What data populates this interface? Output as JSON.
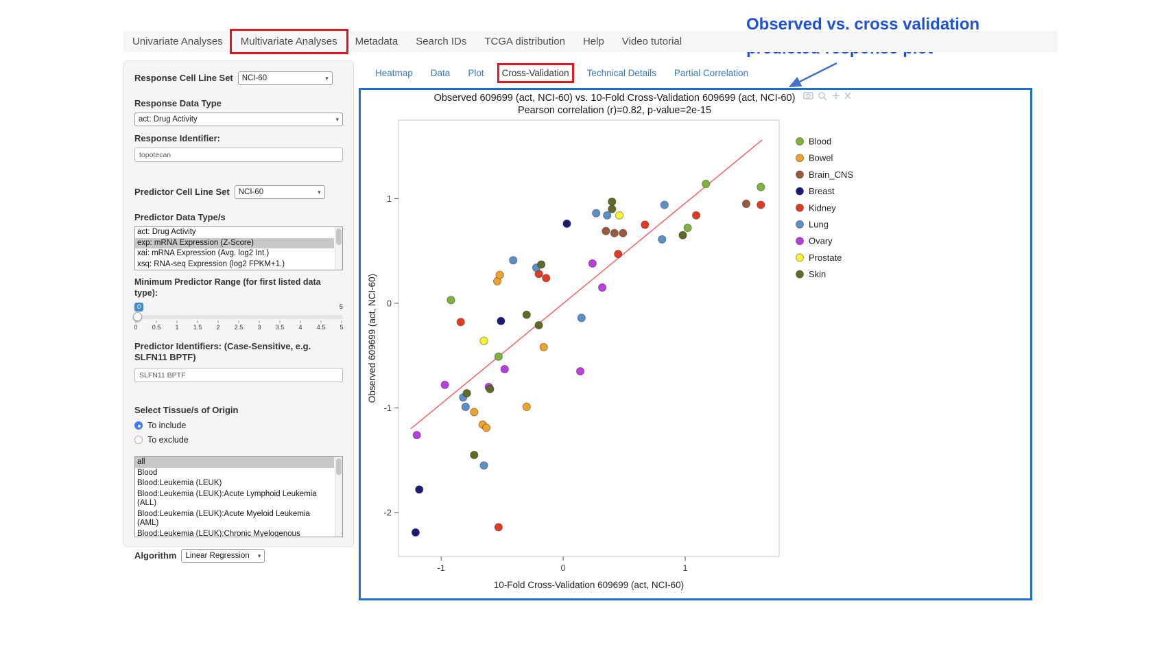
{
  "nav": {
    "tabs": [
      {
        "label": "Univariate Analyses",
        "active": false,
        "highlighted": false
      },
      {
        "label": "Multivariate Analyses",
        "active": true,
        "highlighted": true
      },
      {
        "label": "Metadata",
        "active": false,
        "highlighted": false
      },
      {
        "label": "Search IDs",
        "active": false,
        "highlighted": false
      },
      {
        "label": "TCGA distribution",
        "active": false,
        "highlighted": false
      },
      {
        "label": "Help",
        "active": false,
        "highlighted": false
      },
      {
        "label": "Video tutorial",
        "active": false,
        "highlighted": false
      }
    ]
  },
  "annotation": {
    "line1": "Observed vs. cross validation",
    "line2": "predicted response plot",
    "color": "#2152d4"
  },
  "subtabs": [
    {
      "label": "Heatmap",
      "active": false,
      "highlighted": false
    },
    {
      "label": "Data",
      "active": false,
      "highlighted": false
    },
    {
      "label": "Plot",
      "active": false,
      "highlighted": false
    },
    {
      "label": "Cross-Validation",
      "active": true,
      "highlighted": true
    },
    {
      "label": "Technical Details",
      "active": false,
      "highlighted": false
    },
    {
      "label": "Partial Correlation",
      "active": false,
      "highlighted": false
    }
  ],
  "sidebar": {
    "response_cell_line_set_label": "Response Cell Line Set",
    "response_cell_line_set_value": "NCI-60",
    "response_data_type_label": "Response Data Type",
    "response_data_type_value": "act: Drug Activity",
    "response_identifier_label": "Response Identifier:",
    "response_identifier_value": "topotecan",
    "predictor_cell_line_set_label": "Predictor Cell Line Set",
    "predictor_cell_line_set_value": "NCI-60",
    "predictor_data_types_label": "Predictor Data Type/s",
    "predictor_data_types_options": [
      {
        "label": "act: Drug Activity",
        "selected": false
      },
      {
        "label": "exp: mRNA Expression (Z-Score)",
        "selected": true
      },
      {
        "label": "xai: mRNA Expression (Avg. log2 Int.)",
        "selected": false
      },
      {
        "label": "xsq: RNA-seq Expression (log2 FPKM+1.)",
        "selected": false
      }
    ],
    "min_predictor_range_label": "Minimum Predictor Range (for first listed data type):",
    "slider": {
      "value": "0",
      "max_label": "5",
      "ticks": [
        "0",
        "0.5",
        "1",
        "1.5",
        "2",
        "2.5",
        "3",
        "3.5",
        "4",
        "4.5",
        "5"
      ]
    },
    "predictor_identifiers_label": "Predictor Identifiers: (Case-Sensitive, e.g. SLFN11 BPTF)",
    "predictor_identifiers_value": "SLFN11 BPTF",
    "tissue_label": "Select Tissue/s of Origin",
    "tissue_radios": [
      {
        "label": "To include",
        "selected": true
      },
      {
        "label": "To exclude",
        "selected": false
      }
    ],
    "tissue_options": [
      {
        "label": "all",
        "selected": true
      },
      {
        "label": "Blood",
        "selected": false
      },
      {
        "label": "Blood:Leukemia (LEUK)",
        "selected": false
      },
      {
        "label": "Blood:Leukemia (LEUK):Acute Lymphoid Leukemia (ALL)",
        "selected": false
      },
      {
        "label": "Blood:Leukemia (LEUK):Acute Myeloid Leukemia (AML)",
        "selected": false
      },
      {
        "label": "Blood:Leukemia (LEUK):Chronic Myelogenous Leukemia (CML)",
        "selected": false
      }
    ],
    "algorithm_label": "Algorithm",
    "algorithm_value": "Linear Regression"
  },
  "chart_data": {
    "type": "scatter",
    "title": "Observed 609699 (act, NCI-60) vs. 10-Fold Cross-Validation 609699 (act, NCI-60)",
    "subtitle": "Pearson correlation (r)=0.82, p-value=2e-15",
    "xlabel": "10-Fold Cross-Validation 609699 (act, NCI-60)",
    "ylabel": "Observed 609699 (act, NCI-60)",
    "xlim": [
      -1.35,
      1.77
    ],
    "ylim": [
      -2.42,
      1.75
    ],
    "xticks": [
      -1,
      0,
      1
    ],
    "yticks": [
      -2,
      -1,
      0,
      1
    ],
    "grid": false,
    "legend_position": "right",
    "regression_line": {
      "x1": -1.25,
      "y1": -1.2,
      "x2": 1.63,
      "y2": 1.56,
      "color": "#f26c6c"
    },
    "groups": [
      {
        "name": "Blood",
        "color": "#7db43c",
        "points": [
          [
            -0.92,
            0.03
          ],
          [
            -0.53,
            -0.51
          ],
          [
            1.02,
            0.72
          ],
          [
            1.17,
            1.14
          ],
          [
            1.62,
            1.11
          ]
        ]
      },
      {
        "name": "Bowel",
        "color": "#efa32a",
        "points": [
          [
            -0.73,
            -1.04
          ],
          [
            -0.66,
            -1.16
          ],
          [
            -0.63,
            -1.19
          ],
          [
            -0.54,
            0.21
          ],
          [
            -0.52,
            0.27
          ],
          [
            -0.3,
            -0.99
          ],
          [
            -0.16,
            -0.42
          ]
        ]
      },
      {
        "name": "Brain_CNS",
        "color": "#9c5a3c",
        "points": [
          [
            0.35,
            0.69
          ],
          [
            0.42,
            0.67
          ],
          [
            0.49,
            0.67
          ],
          [
            1.5,
            0.95
          ]
        ]
      },
      {
        "name": "Breast",
        "color": "#1b1b77",
        "points": [
          [
            -1.21,
            -2.19
          ],
          [
            -1.18,
            -1.78
          ],
          [
            -0.51,
            -0.17
          ],
          [
            0.03,
            0.76
          ]
        ]
      },
      {
        "name": "Kidney",
        "color": "#e23b22",
        "points": [
          [
            -0.84,
            -0.18
          ],
          [
            -0.53,
            -2.14
          ],
          [
            -0.2,
            0.28
          ],
          [
            -0.14,
            0.24
          ],
          [
            0.45,
            0.47
          ],
          [
            0.67,
            0.75
          ],
          [
            1.09,
            0.84
          ],
          [
            1.62,
            0.94
          ]
        ]
      },
      {
        "name": "Lung",
        "color": "#5b8fc8",
        "points": [
          [
            -0.82,
            -0.9
          ],
          [
            -0.8,
            -0.99
          ],
          [
            -0.65,
            -1.55
          ],
          [
            -0.41,
            0.41
          ],
          [
            -0.22,
            0.34
          ],
          [
            0.15,
            -0.14
          ],
          [
            0.27,
            0.86
          ],
          [
            0.36,
            0.84
          ],
          [
            0.81,
            0.61
          ],
          [
            0.83,
            0.94
          ]
        ]
      },
      {
        "name": "Ovary",
        "color": "#bb3fe0",
        "points": [
          [
            -1.2,
            -1.26
          ],
          [
            -0.97,
            -0.78
          ],
          [
            -0.61,
            -0.8
          ],
          [
            -0.48,
            -0.63
          ],
          [
            0.14,
            -0.65
          ],
          [
            0.24,
            0.38
          ],
          [
            0.32,
            0.15
          ]
        ]
      },
      {
        "name": "Prostate",
        "color": "#f6f630",
        "points": [
          [
            -0.65,
            -0.36
          ],
          [
            0.46,
            0.84
          ]
        ]
      },
      {
        "name": "Skin",
        "color": "#5f6b24",
        "points": [
          [
            -0.79,
            -0.86
          ],
          [
            -0.73,
            -1.45
          ],
          [
            -0.6,
            -0.82
          ],
          [
            -0.3,
            -0.11
          ],
          [
            -0.2,
            -0.21
          ],
          [
            -0.18,
            0.37
          ],
          [
            0.4,
            0.97
          ],
          [
            0.4,
            0.9
          ],
          [
            0.98,
            0.65
          ]
        ]
      }
    ]
  }
}
